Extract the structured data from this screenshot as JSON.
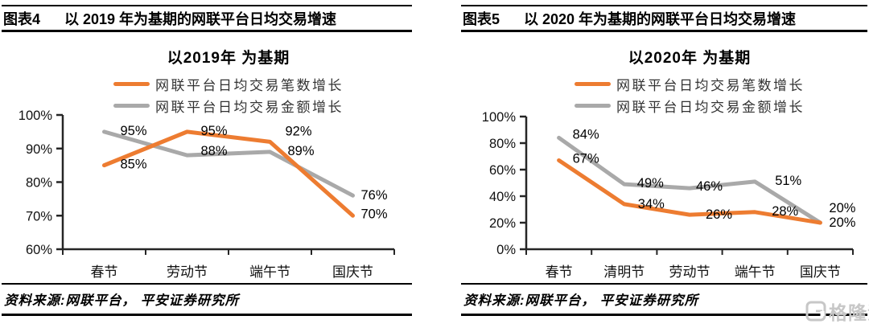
{
  "page": {
    "background": "#ffffff"
  },
  "colors": {
    "orange": "#ED7C31",
    "gray": "#A9A9A9",
    "axis": "#262626",
    "label_text": "#000000",
    "watermark_gray": "#c7c7c7"
  },
  "panels": [
    {
      "header": {
        "tag": "图表4",
        "title": "以 2019 年为基期的网联平台日均交易增速"
      },
      "source": "资料来源:网联平台， 平安证券研究所"
    },
    {
      "header": {
        "tag": "图表5",
        "title": "以 2020 年为基期的网联平台日均交易增速"
      },
      "source": "资料来源:网联平台， 平安证券研究所"
    }
  ],
  "watermark": {
    "text": "格隆汇",
    "icon": "gelonghui-logo-icon"
  },
  "chart_data": [
    {
      "type": "line",
      "title": "以2019年 为基期",
      "categories": [
        "春节",
        "劳动节",
        "端午节",
        "国庆节"
      ],
      "series": [
        {
          "name": "网联平台日均交易笔数增长",
          "color": "#ED7C31",
          "values": [
            85,
            95,
            92,
            70
          ]
        },
        {
          "name": "网联平台日均交易金额增长",
          "color": "#A9A9A9",
          "values": [
            95,
            88,
            89,
            76
          ]
        }
      ],
      "unit": "%",
      "ylim": [
        60,
        100
      ],
      "ytick_step": 10,
      "ytick_labels": [
        "60%",
        "70%",
        "80%",
        "90%",
        "100%"
      ],
      "grid": false,
      "legend_position": "top",
      "data_labels": true
    },
    {
      "type": "line",
      "title": "以2020年 为基期",
      "categories": [
        "春节",
        "清明节",
        "劳动节",
        "端午节",
        "国庆节"
      ],
      "series": [
        {
          "name": "网联平台日均交易笔数增长",
          "color": "#ED7C31",
          "values": [
            67,
            34,
            26,
            28,
            20
          ]
        },
        {
          "name": "网联平台日均交易金额增长",
          "color": "#A9A9A9",
          "values": [
            84,
            49,
            46,
            51,
            20
          ]
        }
      ],
      "unit": "%",
      "ylim": [
        0,
        100
      ],
      "ytick_step": 20,
      "ytick_labels": [
        "0%",
        "20%",
        "40%",
        "60%",
        "80%",
        "100%"
      ],
      "grid": false,
      "legend_position": "top",
      "data_labels": true
    }
  ]
}
